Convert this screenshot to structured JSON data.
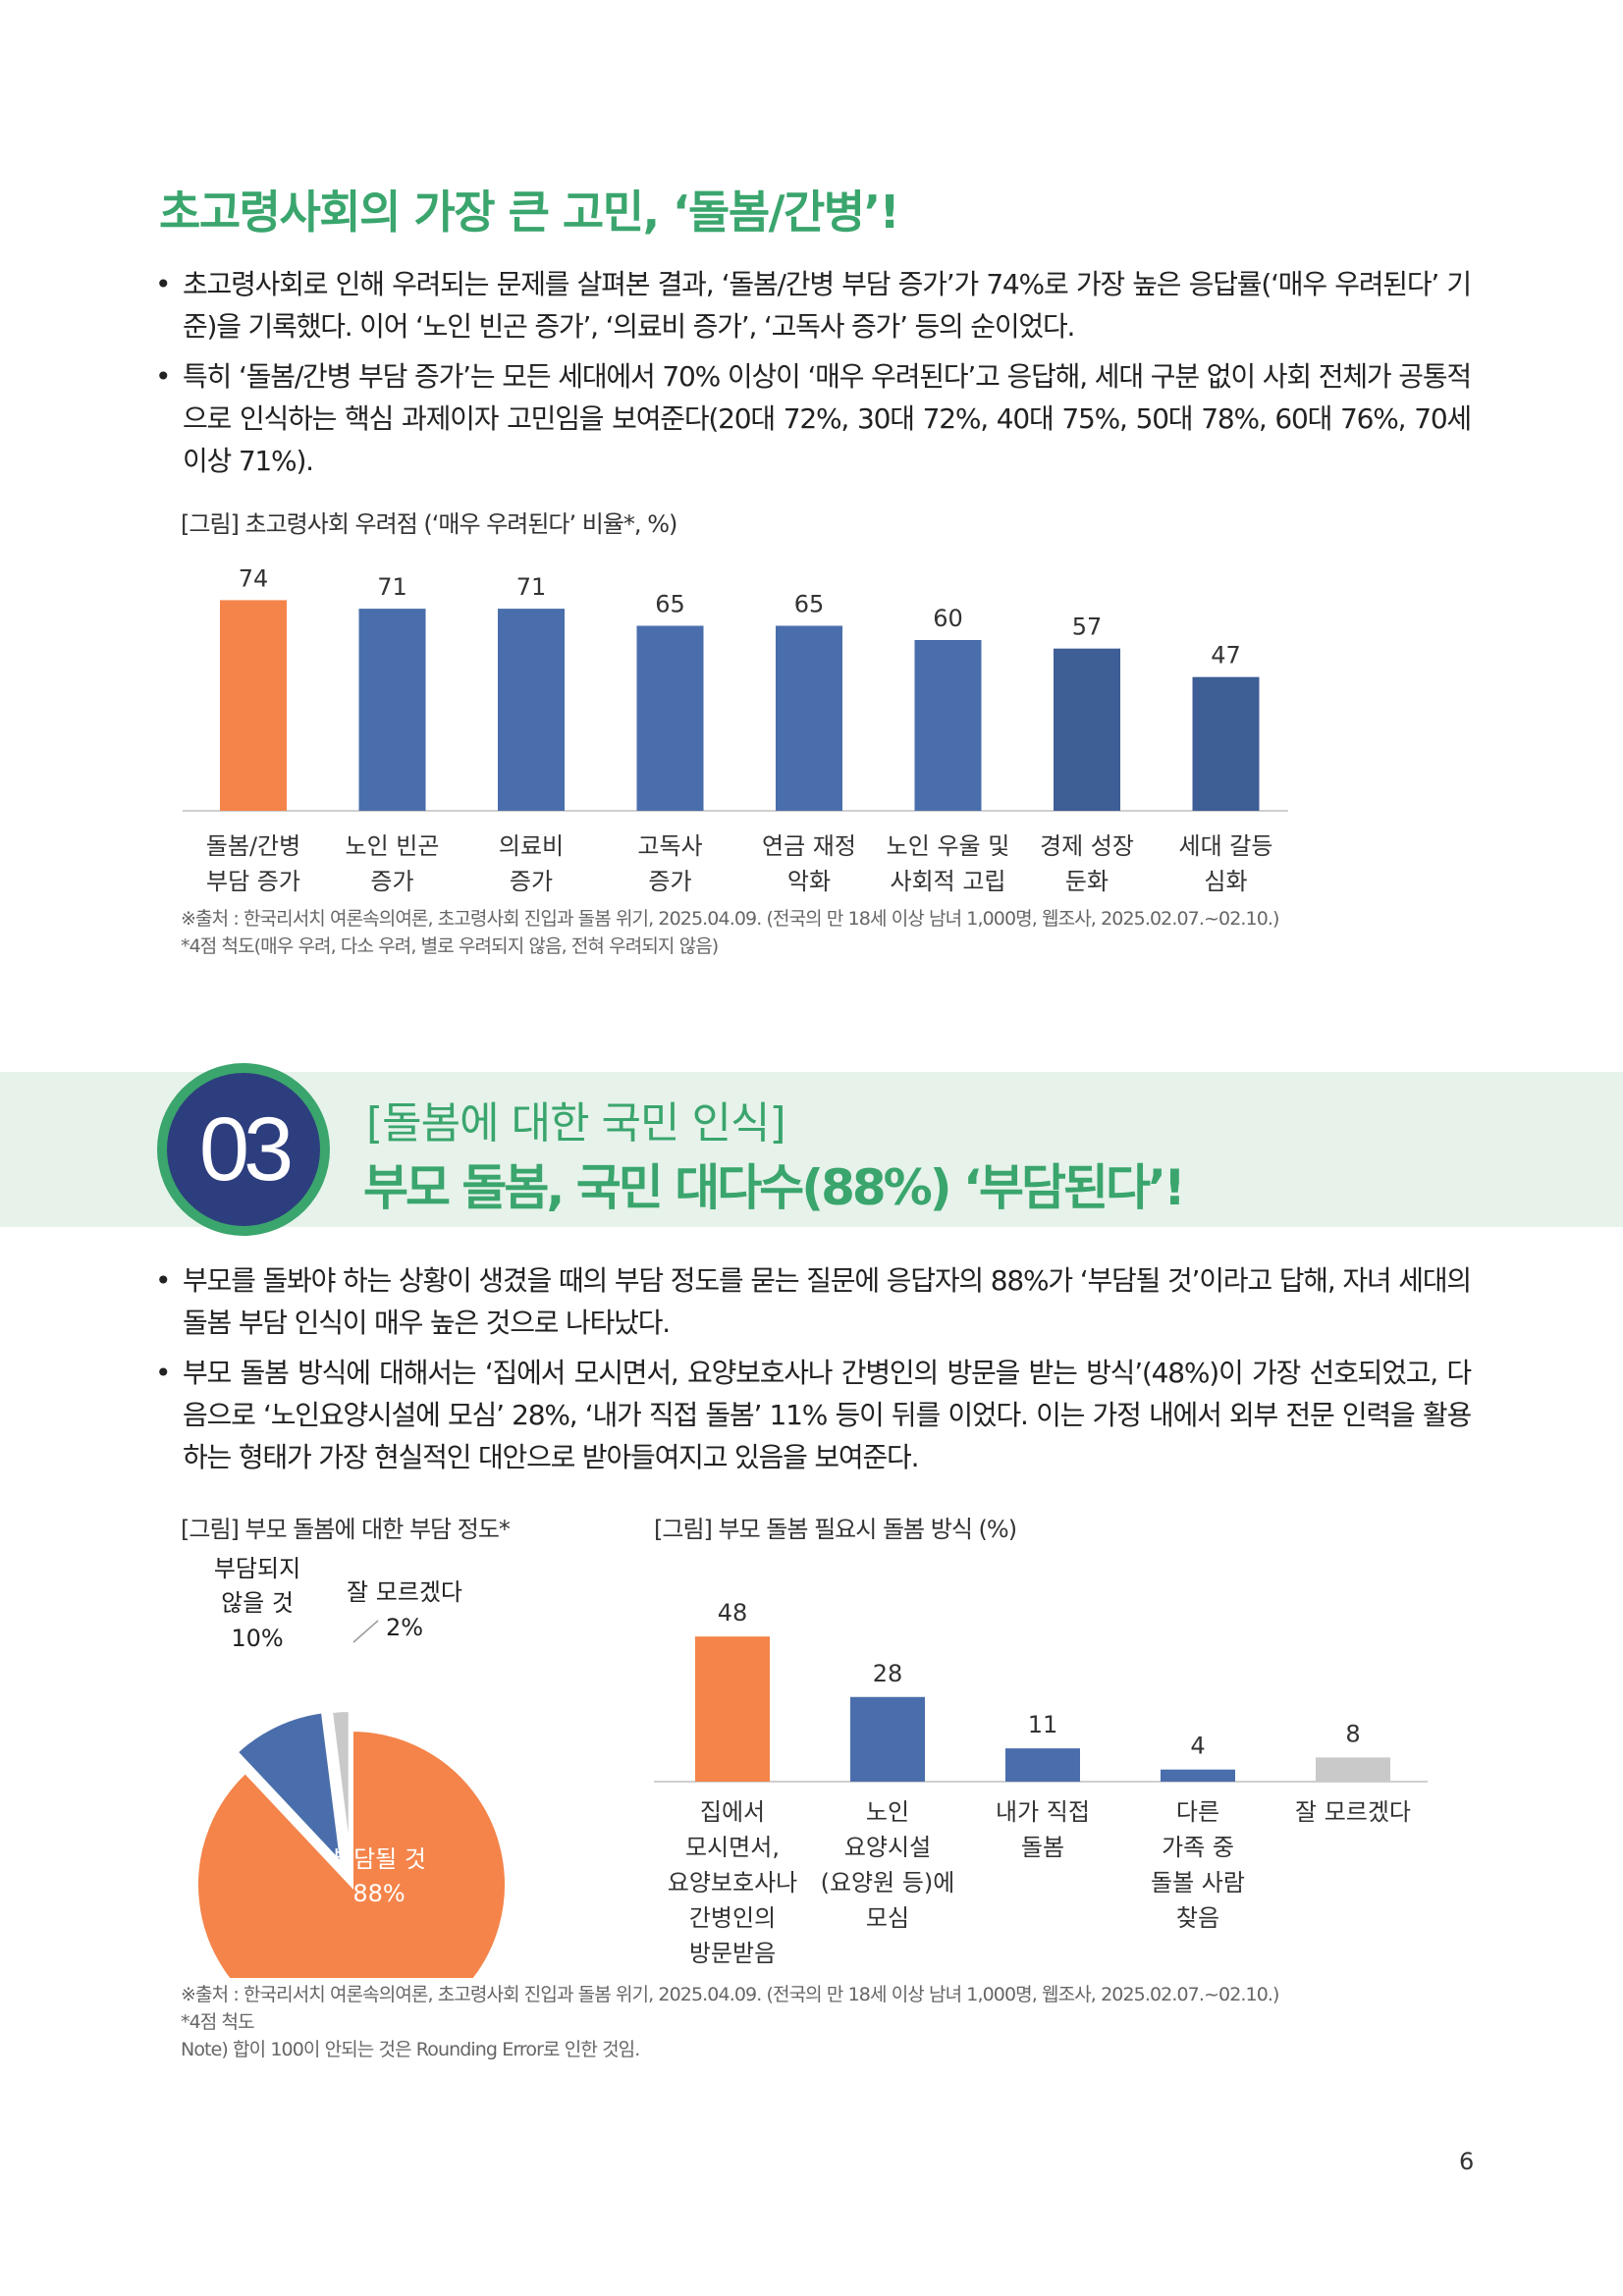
{
  "section1": {
    "title": "초고령사회의 가장 큰 고민, ‘돌봄/간병’!",
    "bullets": [
      "초고령사회로 인해 우려되는 문제를 살펴본 결과, ‘돌봄/간병 부담 증가’가 74%로 가장 높은 응답률(‘매우 우려된다’ 기준)을 기록했다. 이어 ‘노인 빈곤 증가’, ‘의료비 증가’, ‘고독사 증가’ 등의 순이었다.",
      "특히 ‘돌봄/간병 부담 증가’는 모든 세대에서 70% 이상이 ‘매우 우려된다’고 응답해, 세대 구분 없이 사회 전체가 공통적으로 인식하는 핵심 과제이자 고민임을 보여준다(20대 72%, 30대 72%, 40대 75%, 50대 78%, 60대 76%, 70세 이상 71%)."
    ],
    "chart_caption": "[그림] 초고령사회 우려점 (‘매우 우려된다’ 비율*, %)",
    "source_lines": [
      "※출처 : 한국리서치 여론속의여론, 초고령사회 진입과 돌봄 위기, 2025.04.09. (전국의 만 18세 이상 남녀 1,000명, 웹조사, 2025.02.07.~02.10.)",
      "*4점 척도(매우 우려, 다소 우려, 별로 우려되지 않음, 전혀 우려되지 않음)"
    ]
  },
  "section2": {
    "number": "03",
    "subtitle": "[돌봄에 대한 국민 인식]",
    "title": "부모 돌봄, 국민 대다수(88%) ‘부담된다’!",
    "bullets": [
      "부모를 돌봐야 하는 상황이 생겼을 때의 부담 정도를 묻는 질문에 응답자의 88%가 ‘부담될 것’이라고 답해, 자녀 세대의 돌봄 부담 인식이 매우 높은 것으로 나타났다.",
      "부모 돌봄 방식에 대해서는 ‘집에서 모시면서, 요양보호사나 간병인의 방문을 받는 방식’(48%)이 가장 선호되었고, 다음으로 ‘노인요양시설에 모심’ 28%, ‘내가 직접 돌봄’ 11% 등이 뒤를 이었다. 이는 가정 내에서 외부 전문 인력을 활용하는 형태가 가장 현실적인 대안으로 받아들여지고 있음을 보여준다."
    ],
    "pie_caption": "[그림] 부모 돌봄에 대한 부담 정도*",
    "bar_caption": "[그림] 부모 돌봄 필요시 돌봄 방식 (%)",
    "source_lines": [
      "※출처 : 한국리서치 여론속의여론, 초고령사회 진입과 돌봄 위기, 2025.04.09. (전국의 만 18세 이상 남녀 1,000명, 웹조사, 2025.02.07.~02.10.)",
      "*4점 척도",
      "Note) 합이 100이 안되는 것은 Rounding Error로 인한 것임."
    ]
  },
  "page_number": "6",
  "colors": {
    "accent_green": "#3aa56d",
    "navy": "#2d3e7e",
    "orange": "#f4844a",
    "blue": "#4a6eab",
    "gray": "#c9c9c9"
  },
  "chart_data": [
    {
      "type": "bar",
      "title": "[그림] 초고령사회 우려점 (‘매우 우려된다’ 비율*, %)",
      "categories": [
        [
          "돌봄/간병",
          "부담 증가"
        ],
        [
          "노인 빈곤",
          "증가"
        ],
        [
          "의료비",
          "증가"
        ],
        [
          "고독사",
          "증가"
        ],
        [
          "연금 재정",
          "악화"
        ],
        [
          "노인 우울 및",
          "사회적 고립"
        ],
        [
          "경제 성장",
          "둔화"
        ],
        [
          "세대 갈등",
          "심화"
        ]
      ],
      "values": [
        74,
        71,
        71,
        65,
        65,
        60,
        57,
        47
      ],
      "value_labels": [
        "74",
        "71",
        "71",
        "65",
        "65",
        "60",
        "57",
        "47"
      ],
      "highlight_index": 0,
      "ylim": [
        0,
        80
      ],
      "grid": false
    },
    {
      "type": "pie",
      "title": "[그림] 부모 돌봄에 대한 부담 정도*",
      "slices": [
        {
          "label": "부담될 것",
          "value": 88,
          "value_label": "88%",
          "color": "#f4844a"
        },
        {
          "label_lines": [
            "부담되지",
            "않을 것"
          ],
          "value": 10,
          "value_label": "10%",
          "color": "#4a6eab"
        },
        {
          "label": "잘 모르겠다",
          "value": 2,
          "value_label": "2%",
          "color": "#c9c9c9"
        }
      ]
    },
    {
      "type": "bar",
      "title": "[그림] 부모 돌봄 필요시 돌봄 방식 (%)",
      "categories": [
        [
          "집에서",
          "모시면서,",
          "요양보호사나",
          "간병인의",
          "방문받음"
        ],
        [
          "노인",
          "요양시설",
          "(요양원 등)에",
          "모심"
        ],
        [
          "내가 직접",
          "돌봄"
        ],
        [
          "다른",
          "가족 중",
          "돌볼 사람",
          "찾음"
        ],
        [
          "잘 모르겠다"
        ]
      ],
      "values": [
        48,
        28,
        11,
        4,
        8
      ],
      "value_labels": [
        "48",
        "28",
        "11",
        "4",
        "8"
      ],
      "colors": [
        "#f4844a",
        "#4a6eab",
        "#4a6eab",
        "#4a6eab",
        "#c9c9c9"
      ],
      "ylim": [
        0,
        50
      ],
      "grid": false
    }
  ]
}
